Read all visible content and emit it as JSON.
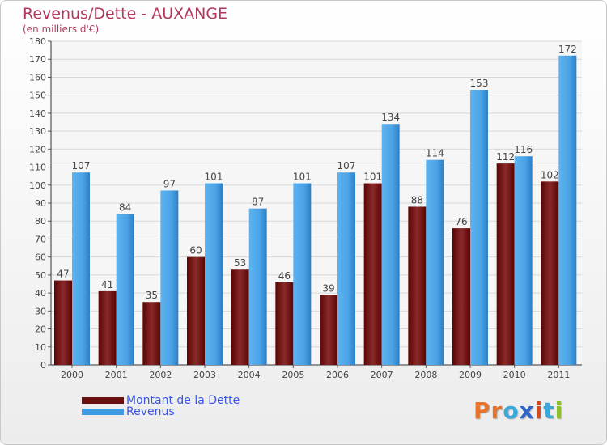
{
  "title": "Revenus/Dette - AUXANGE",
  "subtitle": "(en milliers d'€)",
  "colors": {
    "dette": "#7a1a1a",
    "revenus": "#3f9be0",
    "title": "#b0385b",
    "legend_text": "#3b55e6"
  },
  "legend": [
    {
      "label": "Montant de la Dette",
      "color": "#6a0f0f"
    },
    {
      "label": "Revenus",
      "color": "#3f9be0"
    }
  ],
  "logo": {
    "letters": [
      "P",
      "r",
      "o",
      "x",
      "i",
      "t",
      "i"
    ],
    "colors": [
      "#e8732a",
      "#e8732a",
      "#3aa8d8",
      "#2f64c8",
      "#d04a1e",
      "#3aa8d8",
      "#8cbf2a"
    ],
    "icon": "proxiti-logo"
  },
  "chart_data": {
    "type": "bar",
    "title": "Revenus/Dette - AUXANGE",
    "subtitle": "(en milliers d'€)",
    "categories": [
      "2000",
      "2001",
      "2002",
      "2003",
      "2004",
      "2005",
      "2006",
      "2007",
      "2008",
      "2009",
      "2010",
      "2011"
    ],
    "series": [
      {
        "name": "Montant de la Dette",
        "values": [
          47,
          41,
          35,
          60,
          53,
          46,
          39,
          101,
          88,
          76,
          112,
          102
        ]
      },
      {
        "name": "Revenus",
        "values": [
          107,
          84,
          97,
          101,
          87,
          101,
          107,
          134,
          114,
          153,
          116,
          172
        ]
      }
    ],
    "ylim": [
      0,
      180
    ],
    "ytick_step": 10,
    "grid": true,
    "legend_position": "bottom-left"
  }
}
